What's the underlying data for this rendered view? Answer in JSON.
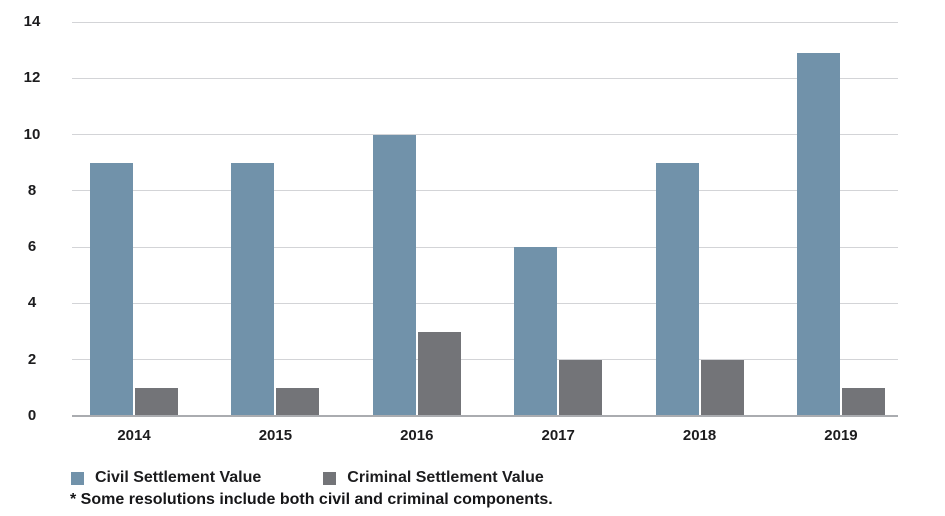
{
  "chart_data": {
    "type": "bar",
    "categories": [
      "2014",
      "2015",
      "2016",
      "2017",
      "2018",
      "2019"
    ],
    "series": [
      {
        "name": "Civil Settlement Value",
        "color": "#7192aa",
        "values": [
          9,
          9,
          10,
          6,
          9,
          12.9
        ]
      },
      {
        "name": "Criminal Settlement Value",
        "color": "#737478",
        "values": [
          1,
          1,
          3,
          2,
          2,
          1
        ]
      }
    ],
    "title": "",
    "xlabel": "",
    "ylabel": "",
    "ylim": [
      0,
      14
    ],
    "ytick_step": 2,
    "ytick_labels": [
      "0",
      "2",
      "4",
      "6",
      "8",
      "10",
      "12",
      "14"
    ],
    "grid": true,
    "legend_position": "bottom-left",
    "footnote": "* Some resolutions include both civil and criminal components."
  },
  "colors": {
    "civil_bar": "#7192aa",
    "criminal_bar": "#737478",
    "gridline": "#d3d4d7",
    "baseline": "#aaacb0",
    "text": "#1c1c1e",
    "background": "#ffffff"
  }
}
